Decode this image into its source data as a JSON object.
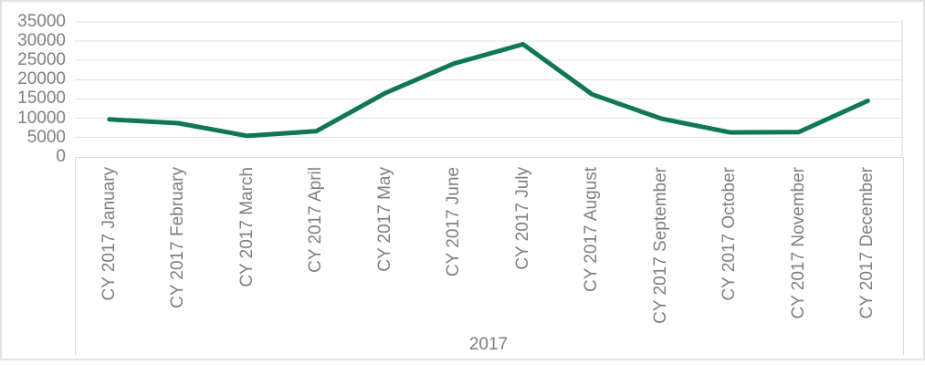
{
  "chart_data": {
    "type": "line",
    "title": "",
    "categories": [
      "CY 2017 January",
      "CY 2017 February",
      "CY 2017 March",
      "CY 2017 April",
      "CY 2017 May",
      "CY 2017 June",
      "CY 2017 July",
      "CY 2017 August",
      "CY 2017 September",
      "CY 2017 October",
      "CY 2017 November",
      "CY 2017 December"
    ],
    "values": [
      9700,
      8700,
      5400,
      6600,
      16500,
      24200,
      29200,
      16200,
      9900,
      6300,
      6400,
      14500
    ],
    "group_label": "2017",
    "ylim": [
      0,
      35000
    ],
    "ytick_step": 5000,
    "ytick_labels": [
      "0",
      "5000",
      "10000",
      "15000",
      "20000",
      "25000",
      "30000",
      "35000"
    ],
    "grid": "horizontal",
    "legend": "none",
    "line_color": "#0f7656",
    "axis_label_color": "#7f7f7f",
    "gridline_color": "#e2e2e2",
    "axis_line_color": "#d9d9d9"
  }
}
